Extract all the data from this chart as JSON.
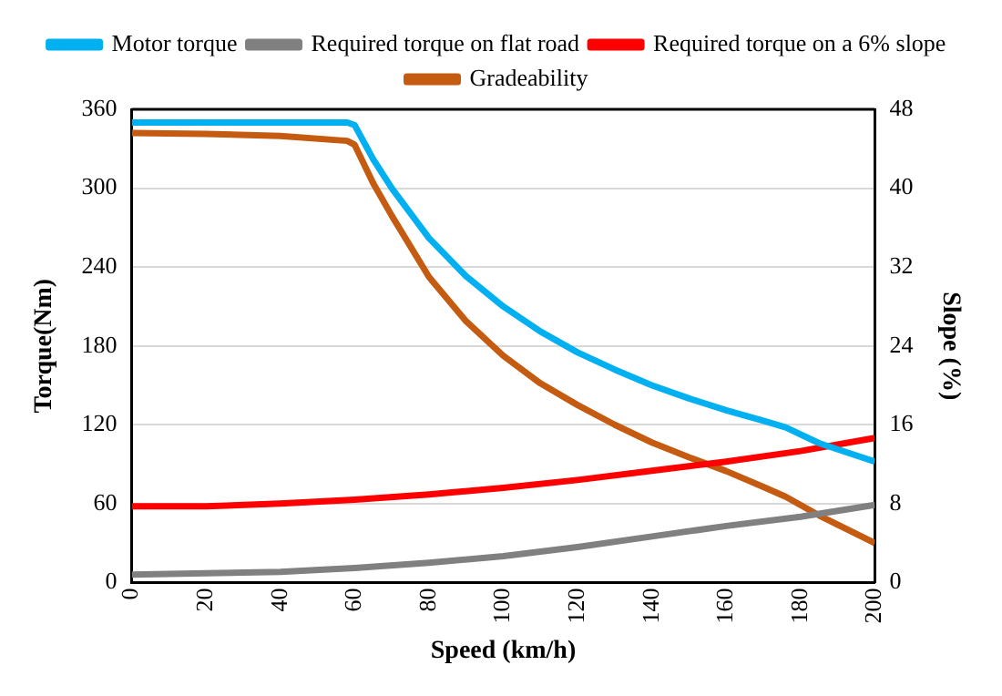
{
  "chart_data": {
    "type": "line",
    "xlabel": "Speed (km/h)",
    "ylabel": "Torque(Nm)",
    "y2label": "Slope (%)",
    "xlim": [
      0,
      200
    ],
    "xticks": [
      0,
      20,
      40,
      60,
      80,
      100,
      120,
      140,
      160,
      180,
      200
    ],
    "ylim": [
      0,
      360
    ],
    "yticks": [
      0,
      60,
      120,
      180,
      240,
      300,
      360
    ],
    "y2lim": [
      0,
      48
    ],
    "y2ticks": [
      0,
      8,
      16,
      24,
      32,
      40,
      48
    ],
    "grid": "y",
    "legend": "top",
    "marker": "none",
    "line_style": "solid",
    "series": [
      {
        "name": "Motor torque",
        "color": "#00b0f0",
        "x": [
          0,
          10,
          20,
          30,
          40,
          50,
          58,
          60,
          65,
          70,
          80,
          90,
          100,
          110,
          120,
          130,
          140,
          150,
          160,
          170,
          176,
          185,
          200
        ],
        "values": [
          350,
          350,
          350,
          350,
          350,
          350,
          350,
          348,
          322,
          300,
          262,
          233,
          210,
          191,
          175,
          162,
          150,
          140,
          131,
          123,
          118,
          106,
          92
        ]
      },
      {
        "name": "Required torque on flat road",
        "color": "#808080",
        "x": [
          0,
          20,
          40,
          60,
          80,
          100,
          120,
          140,
          160,
          180,
          200
        ],
        "values": [
          6,
          7,
          8,
          11,
          15,
          20,
          27,
          35,
          43,
          50,
          59
        ]
      },
      {
        "name": "Required torque on a 6% slope",
        "color": "#ff0000",
        "x": [
          0,
          20,
          40,
          60,
          80,
          100,
          120,
          140,
          160,
          180,
          200
        ],
        "values": [
          58,
          58,
          60,
          63,
          67,
          72,
          78,
          85,
          92,
          100,
          110
        ]
      },
      {
        "name": "Gradeability",
        "color": "#c55a11",
        "axis": "y2",
        "x": [
          0,
          20,
          40,
          58,
          60,
          65,
          70,
          80,
          90,
          100,
          110,
          120,
          130,
          140,
          150,
          160,
          170,
          176,
          185,
          200
        ],
        "values": [
          45.6,
          45.5,
          45.3,
          44.8,
          44.4,
          40.5,
          37.2,
          31,
          26.5,
          23,
          20.2,
          18,
          16,
          14.2,
          12.7,
          11.3,
          9.7,
          8.7,
          6.8,
          4
        ]
      }
    ]
  }
}
